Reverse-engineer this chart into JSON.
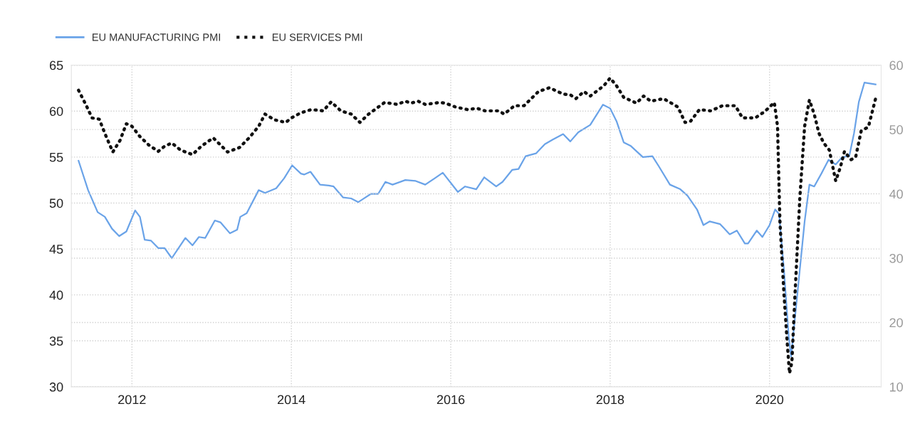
{
  "chart_data": {
    "type": "line",
    "xlim": [
      2011.24,
      2021.4
    ],
    "xticks": [
      2012,
      2014,
      2016,
      2018,
      2020
    ],
    "ylim": [
      30,
      65
    ],
    "yticks": [
      30,
      35,
      40,
      45,
      50,
      55,
      60,
      65
    ],
    "y2lim": [
      10,
      60
    ],
    "y2ticks": [
      10,
      20,
      30,
      40,
      50,
      60
    ],
    "grid": true,
    "legend": "top left",
    "series": [
      {
        "name": "EU MANUFACTURING PMI",
        "color": "#6aa3e8",
        "line_style": "solid",
        "x": [
          2011.33,
          2011.45,
          2011.57,
          2011.66,
          2011.75,
          2011.84,
          2011.93,
          2012.04,
          2012.1,
          2012.16,
          2012.24,
          2012.33,
          2012.41,
          2012.5,
          2012.67,
          2012.76,
          2012.84,
          2012.92,
          2013.04,
          2013.11,
          2013.23,
          2013.32,
          2013.36,
          2013.44,
          2013.59,
          2013.67,
          2013.81,
          2013.91,
          2014.01,
          2014.12,
          2014.16,
          2014.24,
          2014.36,
          2014.47,
          2014.53,
          2014.65,
          2014.75,
          2014.84,
          2015.0,
          2015.09,
          2015.18,
          2015.27,
          2015.43,
          2015.56,
          2015.68,
          2015.8,
          2015.9,
          2016.09,
          2016.18,
          2016.32,
          2016.42,
          2016.57,
          2016.65,
          2016.77,
          2016.85,
          2016.94,
          2017.07,
          2017.18,
          2017.28,
          2017.41,
          2017.5,
          2017.6,
          2017.75,
          2017.91,
          2018.0,
          2018.08,
          2018.17,
          2018.26,
          2018.41,
          2018.53,
          2018.61,
          2018.75,
          2018.88,
          2018.97,
          2019.09,
          2019.17,
          2019.25,
          2019.38,
          2019.5,
          2019.59,
          2019.69,
          2019.73,
          2019.84,
          2019.91,
          2020.0,
          2020.07,
          2020.12,
          2020.18,
          2020.24,
          2020.27,
          2020.32,
          2020.38,
          2020.44,
          2020.5,
          2020.56,
          2020.65,
          2020.74,
          2020.83,
          2020.91,
          2021.0,
          2021.06,
          2021.12,
          2021.19,
          2021.33
        ],
        "values": [
          54.6,
          51.4,
          49.0,
          48.5,
          47.2,
          46.4,
          46.9,
          49.2,
          48.5,
          46.0,
          45.9,
          45.1,
          45.1,
          44.0,
          46.2,
          45.4,
          46.3,
          46.2,
          48.1,
          47.9,
          46.7,
          47.1,
          48.5,
          48.9,
          51.4,
          51.1,
          51.6,
          52.7,
          54.1,
          53.2,
          53.1,
          53.4,
          52.0,
          51.9,
          51.8,
          50.6,
          50.5,
          50.1,
          51.0,
          51.0,
          52.3,
          52.0,
          52.5,
          52.4,
          52.0,
          52.7,
          53.3,
          51.2,
          51.8,
          51.5,
          52.8,
          51.8,
          52.3,
          53.6,
          53.7,
          55.1,
          55.4,
          56.4,
          56.9,
          57.5,
          56.7,
          57.7,
          58.5,
          60.7,
          60.3,
          58.9,
          56.6,
          56.2,
          55.0,
          55.1,
          54.0,
          52.0,
          51.5,
          50.8,
          49.3,
          47.6,
          48.0,
          47.7,
          46.6,
          47.0,
          45.6,
          45.6,
          47.0,
          46.3,
          47.6,
          49.3,
          48.8,
          42.8,
          35.5,
          33.3,
          37.6,
          42.8,
          48.0,
          52.0,
          51.8,
          53.2,
          54.7,
          54.2,
          55.0,
          55.1,
          57.6,
          61.0,
          63.1,
          62.9
        ]
      },
      {
        "name": "EU SERVICES PMI",
        "color": "#111111",
        "line_style": "dotted",
        "axis": "y2",
        "x": [
          2011.33,
          2011.42,
          2011.5,
          2011.59,
          2011.66,
          2011.76,
          2011.85,
          2011.93,
          2012.0,
          2012.1,
          2012.21,
          2012.33,
          2012.41,
          2012.5,
          2012.61,
          2012.76,
          2012.87,
          2013.02,
          2013.2,
          2013.35,
          2013.47,
          2013.59,
          2013.67,
          2013.79,
          2013.93,
          2014.0,
          2014.12,
          2014.25,
          2014.4,
          2014.5,
          2014.62,
          2014.75,
          2014.86,
          2014.97,
          2015.17,
          2015.33,
          2015.43,
          2015.5,
          2015.59,
          2015.68,
          2015.86,
          2015.93,
          2016.06,
          2016.21,
          2016.33,
          2016.43,
          2016.6,
          2016.67,
          2016.8,
          2016.92,
          2017.1,
          2017.24,
          2017.41,
          2017.5,
          2017.57,
          2017.67,
          2017.75,
          2017.92,
          2018.0,
          2018.08,
          2018.17,
          2018.33,
          2018.42,
          2018.51,
          2018.67,
          2018.85,
          2018.94,
          2019.01,
          2019.12,
          2019.26,
          2019.41,
          2019.57,
          2019.66,
          2019.82,
          2019.94,
          2020.06,
          2020.1,
          2020.13,
          2020.18,
          2020.22,
          2020.25,
          2020.28,
          2020.32,
          2020.38,
          2020.44,
          2020.5,
          2020.56,
          2020.62,
          2020.68,
          2020.75,
          2020.83,
          2020.89,
          2020.94,
          2021.02,
          2021.08,
          2021.15,
          2021.24,
          2021.33
        ],
        "values": [
          56.1,
          53.9,
          51.8,
          51.6,
          49.4,
          46.5,
          48.3,
          50.9,
          50.5,
          48.9,
          47.6,
          46.6,
          47.4,
          47.9,
          46.8,
          46.1,
          47.4,
          48.7,
          46.5,
          47.2,
          48.7,
          50.5,
          52.4,
          51.5,
          51.1,
          51.8,
          52.6,
          53.1,
          52.9,
          54.3,
          52.9,
          52.4,
          51.1,
          52.4,
          54.2,
          53.9,
          54.4,
          54.1,
          54.4,
          53.9,
          54.2,
          54.1,
          53.5,
          53.1,
          53.3,
          52.9,
          52.9,
          52.4,
          53.7,
          53.7,
          55.9,
          56.5,
          55.5,
          55.4,
          54.8,
          55.9,
          55.2,
          56.8,
          58.0,
          56.8,
          55.0,
          54.1,
          55.2,
          54.4,
          54.8,
          53.5,
          51.1,
          51.3,
          53.1,
          52.9,
          53.7,
          53.7,
          51.8,
          51.8,
          52.8,
          54.2,
          50.5,
          35.7,
          24.6,
          17.1,
          12.1,
          13.8,
          24.6,
          39.4,
          50.5,
          54.6,
          52.4,
          49.4,
          47.9,
          46.8,
          42.0,
          44.2,
          46.6,
          45.3,
          45.7,
          49.8,
          50.4,
          54.8
        ]
      }
    ]
  }
}
